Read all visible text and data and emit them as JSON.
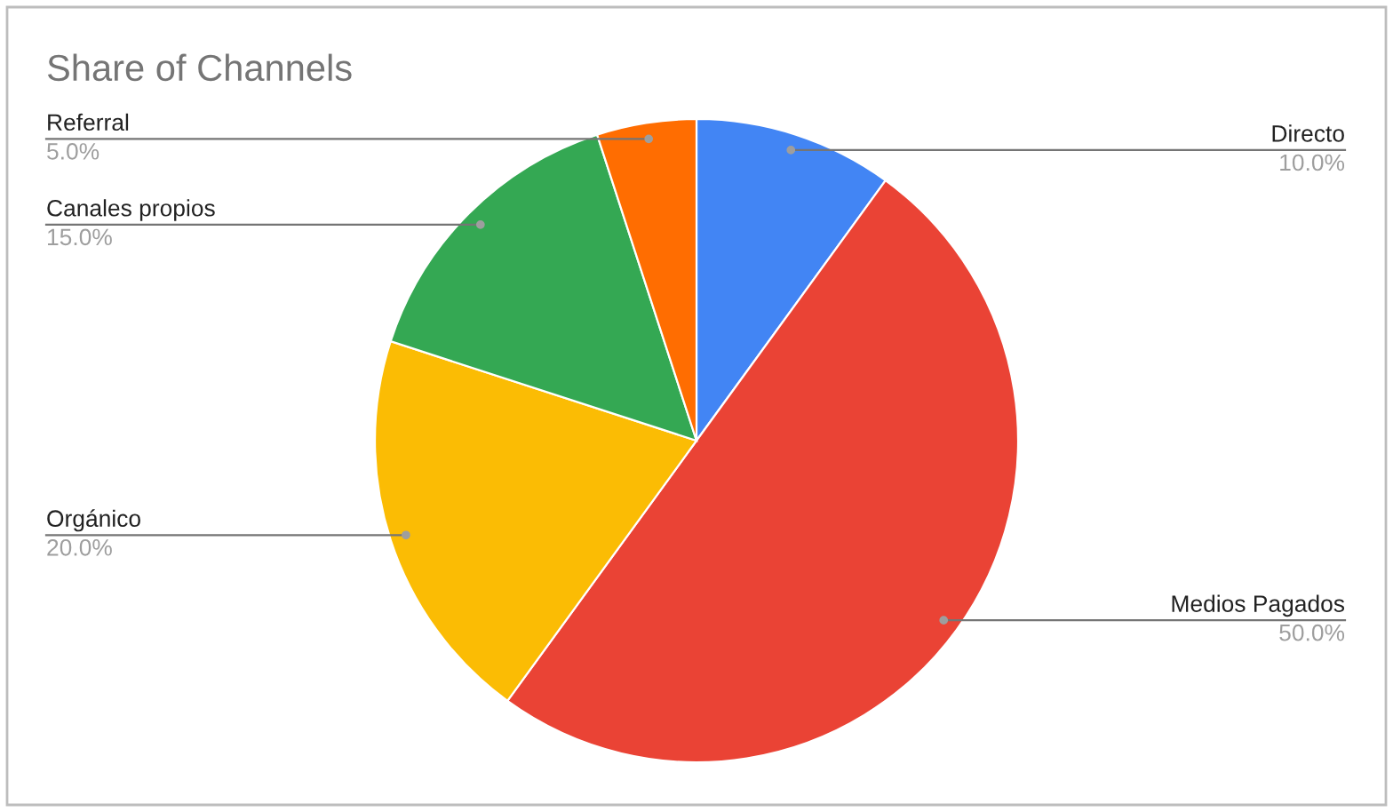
{
  "chart_data": {
    "type": "pie",
    "title": "Share of Channels",
    "categories": [
      "Directo",
      "Medios Pagados",
      "Orgánico",
      "Canales propios",
      "Referral"
    ],
    "values": [
      10,
      50,
      20,
      15,
      5
    ],
    "colors": [
      "#4285f4",
      "#ea4335",
      "#fbbc04",
      "#34a853",
      "#ff6d01"
    ],
    "value_labels": [
      "10.0%",
      "50.0%",
      "20.0%",
      "15.0%",
      "5.0%"
    ]
  }
}
